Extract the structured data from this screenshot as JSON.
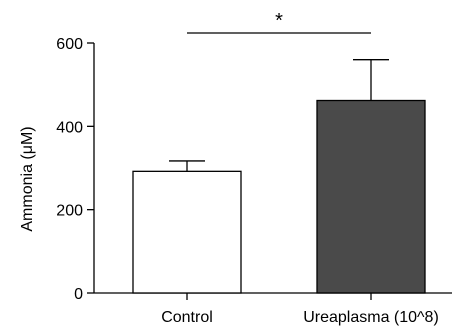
{
  "chart_data": {
    "type": "bar",
    "title": "",
    "xlabel": "",
    "ylabel": "Ammonia (μM)",
    "categories": [
      "Control",
      "Ureaplasma (10^8)"
    ],
    "values": [
      292,
      462
    ],
    "errors": [
      25,
      98
    ],
    "bar_colors": [
      "#ffffff",
      "#4a4a4a"
    ],
    "ylim": [
      0,
      600
    ],
    "yticks": [
      0,
      200,
      400,
      600
    ],
    "grid": false,
    "legend": "none",
    "significance": {
      "between": [
        0,
        1
      ],
      "label": "*"
    }
  }
}
